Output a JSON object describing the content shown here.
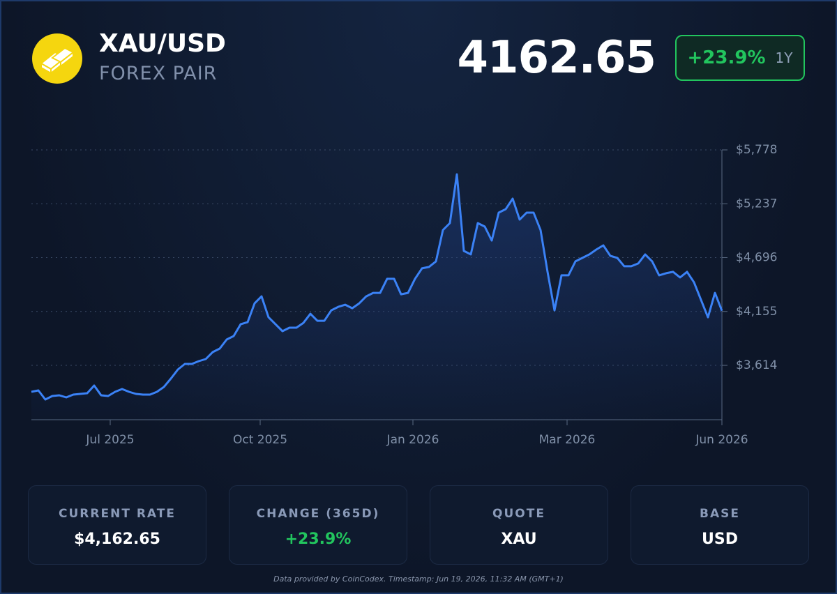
{
  "header": {
    "symbol": "XAU/USD",
    "subtitle": "FOREX PAIR",
    "price": "4162.65",
    "change": "+23.9%",
    "period": "1Y"
  },
  "chart_data": {
    "type": "line",
    "values": [
      3348,
      3362,
      3271,
      3306,
      3313,
      3292,
      3320,
      3327,
      3334,
      3411,
      3313,
      3306,
      3348,
      3376,
      3348,
      3327,
      3320,
      3320,
      3348,
      3397,
      3481,
      3572,
      3628,
      3628,
      3656,
      3677,
      3747,
      3782,
      3873,
      3908,
      4027,
      4048,
      4237,
      4307,
      4097,
      4027,
      3957,
      3992,
      3992,
      4041,
      4132,
      4062,
      4062,
      4167,
      4202,
      4223,
      4188,
      4237,
      4307,
      4342,
      4342,
      4483,
      4483,
      4328,
      4342,
      4483,
      4588,
      4602,
      4658,
      4973,
      5043,
      5533,
      4763,
      4728,
      5043,
      5008,
      4868,
      5148,
      5183,
      5288,
      5078,
      5148,
      5148,
      4973,
      4553,
      4167,
      4518,
      4518,
      4658,
      4693,
      4728,
      4777,
      4819,
      4714,
      4693,
      4609,
      4609,
      4637,
      4728,
      4658,
      4518,
      4539,
      4553,
      4497,
      4553,
      4448,
      4272,
      4097,
      4342,
      4162.65
    ],
    "color": "#3b82f6",
    "xlim": [
      0,
      99
    ],
    "xticks": [
      {
        "value": 11.3,
        "label": "Jul 2025"
      },
      {
        "value": 32.8,
        "label": "Oct 2025"
      },
      {
        "value": 54.7,
        "label": "Jan 2026"
      },
      {
        "value": 76.8,
        "label": "Mar 2026"
      },
      {
        "value": 99,
        "label": "Jun 2026"
      }
    ],
    "ylim": [
      3068,
      5778
    ],
    "yticks": [
      {
        "value": 3614,
        "label": "$3,614"
      },
      {
        "value": 4155,
        "label": "$4,155"
      },
      {
        "value": 4696,
        "label": "$4,696"
      },
      {
        "value": 5237,
        "label": "$5,237"
      },
      {
        "value": 5778,
        "label": "$5,778"
      }
    ],
    "grid": true
  },
  "stats": [
    {
      "label": "CURRENT RATE",
      "value": "$4,162.65"
    },
    {
      "label": "CHANGE (365D)",
      "value": "+23.9%"
    },
    {
      "label": "QUOTE",
      "value": "XAU"
    },
    {
      "label": "BASE",
      "value": "USD"
    }
  ],
  "footer": "Data provided by CoinCodex. Timestamp: Jun 19, 2026, 11:32 AM (GMT+1)"
}
